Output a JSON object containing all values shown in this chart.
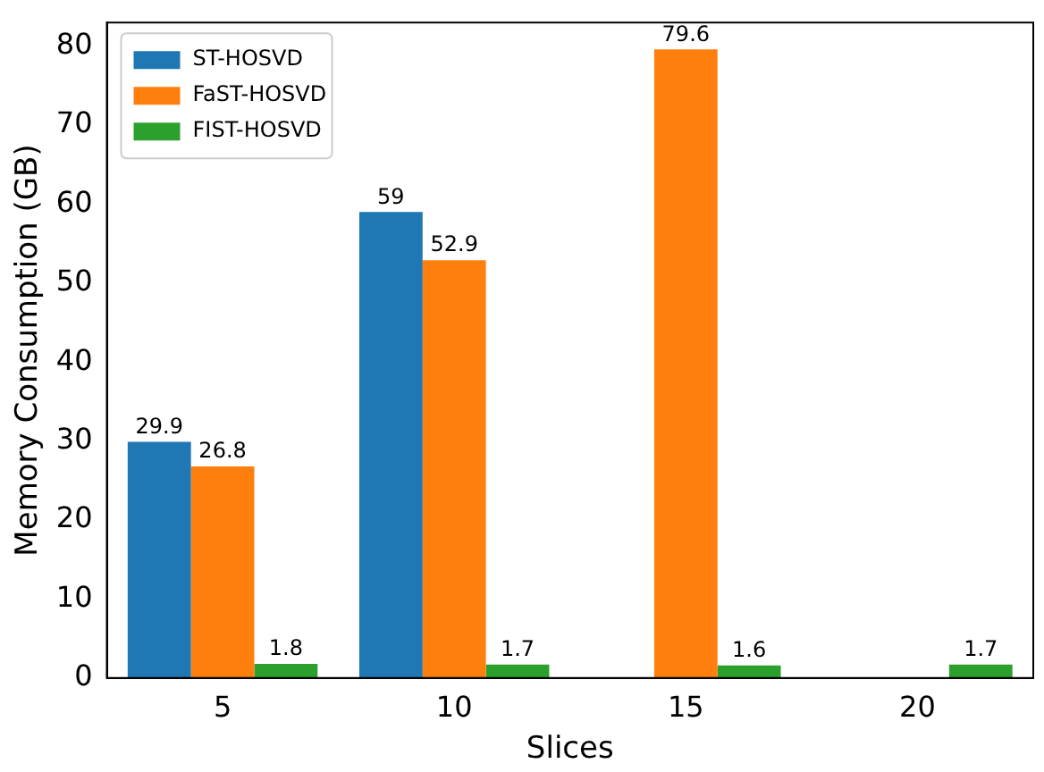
{
  "chart_data": {
    "type": "bar",
    "xlabel": "Slices",
    "ylabel": "Memory Consumption (GB)",
    "categories": [
      "5",
      "10",
      "15",
      "20"
    ],
    "series": [
      {
        "name": "ST-HOSVD",
        "color": "#1f77b4",
        "values": [
          29.9,
          59,
          null,
          null
        ]
      },
      {
        "name": "FaST-HOSVD",
        "color": "#ff7f0e",
        "values": [
          26.8,
          52.9,
          79.6,
          null
        ]
      },
      {
        "name": "FIST-HOSVD",
        "color": "#2ca02c",
        "values": [
          1.8,
          1.7,
          1.6,
          1.7
        ]
      }
    ],
    "ylim": [
      0,
      83
    ],
    "yticks": [
      0,
      10,
      20,
      30,
      40,
      50,
      60,
      70,
      80
    ],
    "grid": false,
    "legend": "top left",
    "data_labels": true
  }
}
